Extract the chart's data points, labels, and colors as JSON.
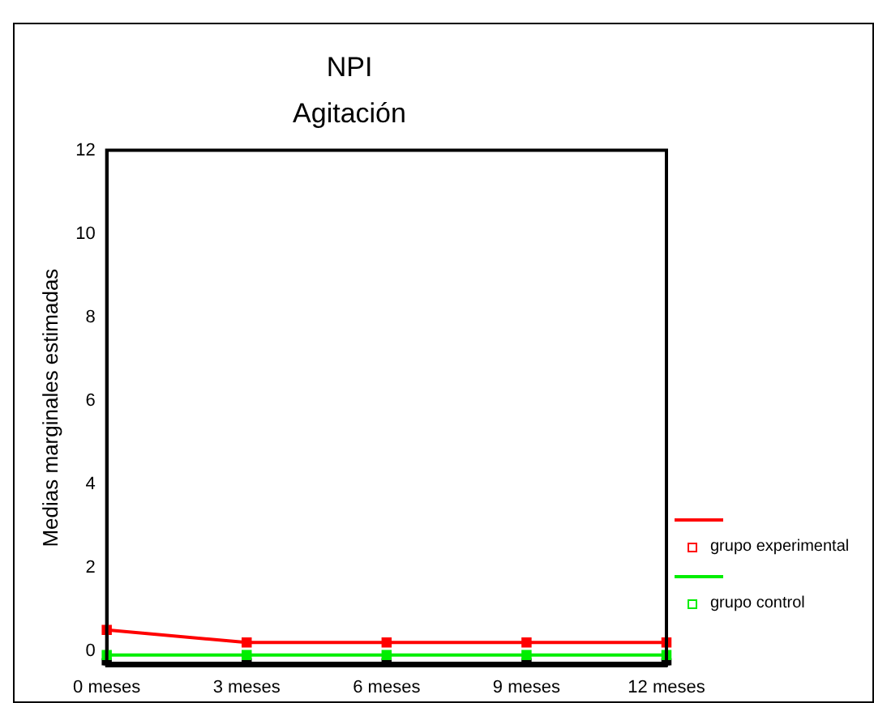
{
  "chart_data": {
    "type": "line",
    "title": "NPI",
    "subtitle": "Agitación",
    "ylabel": "Medias marginales estimadas",
    "categories": [
      "0 meses",
      "3 meses",
      "6 meses",
      "9 meses",
      "12 meses"
    ],
    "series": [
      {
        "name": "grupo experimental",
        "color": "#ff0000",
        "values": [
          0.5,
          0.2,
          0.2,
          0.2,
          0.2
        ]
      },
      {
        "name": "grupo control",
        "color": "#00ee00",
        "values": [
          -0.1,
          -0.1,
          -0.1,
          -0.1,
          -0.1
        ]
      },
      {
        "color": "#000000",
        "values": [
          -0.3,
          -0.3,
          -0.3,
          -0.3,
          -0.3
        ]
      }
    ],
    "ylim": [
      -0.35,
      12
    ],
    "yticks": [
      0,
      2,
      4,
      6,
      8,
      10,
      12
    ],
    "grid": false,
    "legend": "right",
    "marker": "square",
    "line_style": "solid"
  }
}
